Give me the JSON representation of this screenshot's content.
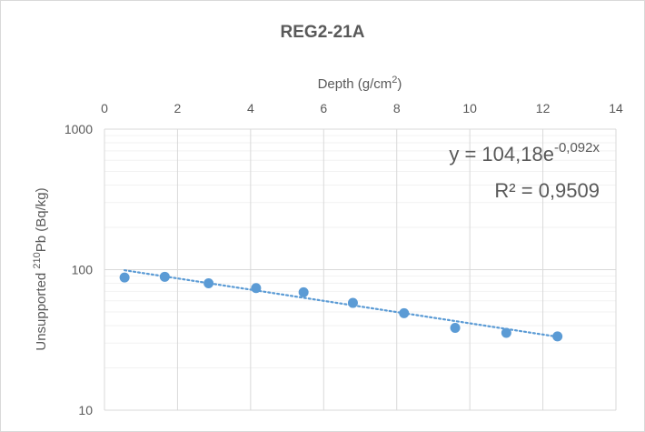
{
  "chart_data": {
    "type": "scatter",
    "title": "REG2-21A",
    "xlabel": {
      "text": "Depth (g/cm",
      "superscript": "2",
      "suffix": ")"
    },
    "ylabel": {
      "prefix": "Unsupported ",
      "superscript": "210",
      "text": "Pb (Bq/kg)"
    },
    "x_axis_position": "top",
    "xlim": [
      0,
      14
    ],
    "x_ticks": [
      0,
      2,
      4,
      6,
      8,
      10,
      12,
      14
    ],
    "y_scale": "log",
    "ylim": [
      10,
      1000
    ],
    "y_ticks": [
      {
        "value": 10,
        "label": "10"
      },
      {
        "value": 100,
        "label": "100"
      },
      {
        "value": 1000,
        "label": "1000"
      }
    ],
    "grid": true,
    "series": [
      {
        "name": "Unsupported 210Pb",
        "color": "#5b9bd5",
        "x": [
          0.55,
          1.65,
          2.85,
          4.15,
          5.45,
          6.8,
          8.2,
          9.6,
          11.0,
          12.4
        ],
        "y": [
          88,
          89,
          80,
          74,
          69,
          58,
          49,
          38.5,
          35.5,
          33.5
        ]
      }
    ],
    "trendline": {
      "type": "exponential",
      "a": 104.18,
      "b": -0.092,
      "x_range": [
        0.55,
        12.4
      ],
      "color": "#5b9bd5",
      "style": "dotted",
      "equation": {
        "base": "y = 104,18e",
        "exponent": "-0,092x"
      },
      "r_squared": "R² = 0,9509"
    }
  }
}
